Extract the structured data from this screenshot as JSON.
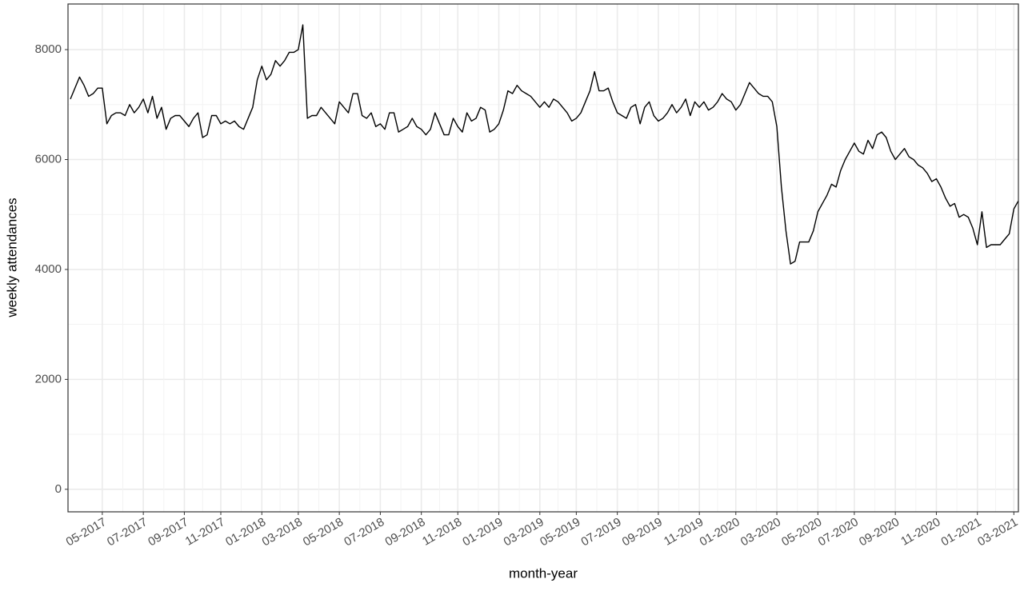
{
  "chart_data": {
    "type": "line",
    "x_label": "month-year",
    "y_label": "weekly attendances",
    "categories": [
      null,
      null,
      null,
      null,
      null,
      null,
      null,
      "05-2017",
      null,
      null,
      null,
      null,
      null,
      null,
      null,
      null,
      "07-2017",
      null,
      null,
      null,
      null,
      null,
      null,
      null,
      null,
      "09-2017",
      null,
      null,
      null,
      null,
      null,
      null,
      null,
      "11-2017",
      null,
      null,
      null,
      null,
      null,
      null,
      null,
      null,
      "01-2018",
      null,
      null,
      null,
      null,
      null,
      null,
      null,
      "03-2018",
      null,
      null,
      null,
      null,
      null,
      null,
      null,
      null,
      "05-2018",
      null,
      null,
      null,
      null,
      null,
      null,
      null,
      null,
      "07-2018",
      null,
      null,
      null,
      null,
      null,
      null,
      null,
      null,
      "09-2018",
      null,
      null,
      null,
      null,
      null,
      null,
      null,
      "11-2018",
      null,
      null,
      null,
      null,
      null,
      null,
      null,
      null,
      "01-2019",
      null,
      null,
      null,
      null,
      null,
      null,
      null,
      null,
      "03-2019",
      null,
      null,
      null,
      null,
      null,
      null,
      null,
      "05-2019",
      null,
      null,
      null,
      null,
      null,
      null,
      null,
      null,
      "07-2019",
      null,
      null,
      null,
      null,
      null,
      null,
      null,
      null,
      "09-2019",
      null,
      null,
      null,
      null,
      null,
      null,
      null,
      null,
      "11-2019",
      null,
      null,
      null,
      null,
      null,
      null,
      null,
      "01-2020",
      null,
      null,
      null,
      null,
      null,
      null,
      null,
      null,
      "03-2020",
      null,
      null,
      null,
      null,
      null,
      null,
      null,
      null,
      "05-2020",
      null,
      null,
      null,
      null,
      null,
      null,
      null,
      "07-2020",
      null,
      null,
      null,
      null,
      null,
      null,
      null,
      null,
      "09-2020",
      null,
      null,
      null,
      null,
      null,
      null,
      null,
      null,
      "11-2020",
      null,
      null,
      null,
      null,
      null,
      null,
      null,
      null,
      "01-2021",
      null,
      null,
      null,
      null,
      null,
      null,
      null,
      "03-2021",
      null
    ],
    "series": [
      {
        "name": "weekly attendances",
        "color": "#000000",
        "values": [
          7100,
          7300,
          7500,
          7350,
          7150,
          7200,
          7300,
          7300,
          6650,
          6800,
          6850,
          6850,
          6800,
          7000,
          6850,
          6950,
          7100,
          6850,
          7150,
          6750,
          6950,
          6550,
          6750,
          6800,
          6800,
          6700,
          6600,
          6750,
          6850,
          6400,
          6450,
          6800,
          6800,
          6650,
          6700,
          6650,
          6700,
          6600,
          6550,
          6750,
          6950,
          7450,
          7700,
          7450,
          7550,
          7800,
          7700,
          7800,
          7950,
          7950,
          8000,
          8450,
          6750,
          6800,
          6800,
          6950,
          6850,
          6750,
          6650,
          7050,
          6950,
          6850,
          7200,
          7200,
          6800,
          6750,
          6850,
          6600,
          6650,
          6550,
          6850,
          6850,
          6500,
          6550,
          6600,
          6750,
          6600,
          6550,
          6450,
          6550,
          6850,
          6650,
          6450,
          6450,
          6750,
          6600,
          6500,
          6850,
          6700,
          6750,
          6950,
          6900,
          6500,
          6550,
          6650,
          6900,
          7250,
          7200,
          7350,
          7250,
          7200,
          7150,
          7050,
          6950,
          7050,
          6950,
          7100,
          7050,
          6950,
          6850,
          6700,
          6750,
          6850,
          7050,
          7250,
          7600,
          7250,
          7250,
          7300,
          7050,
          6850,
          6800,
          6750,
          6950,
          7000,
          6650,
          6950,
          7050,
          6800,
          6700,
          6750,
          6850,
          7000,
          6850,
          6950,
          7100,
          6800,
          7050,
          6950,
          7050,
          6900,
          6950,
          7050,
          7200,
          7100,
          7050,
          6900,
          7000,
          7200,
          7400,
          7300,
          7200,
          7150,
          7150,
          7050,
          6600,
          5500,
          4700,
          4100,
          4150,
          4500,
          4500,
          4500,
          4700,
          5050,
          5200,
          5350,
          5550,
          5500,
          5800,
          6000,
          6150,
          6300,
          6150,
          6100,
          6350,
          6200,
          6450,
          6500,
          6400,
          6150,
          6000,
          6100,
          6200,
          6050,
          6000,
          5900,
          5850,
          5750,
          5600,
          5650,
          5500,
          5300,
          5150,
          5200,
          4950,
          5000,
          4950,
          4750,
          4450,
          5050,
          4400,
          4450,
          4450,
          4450,
          4550,
          4650,
          5100,
          5250
        ]
      }
    ],
    "ylim": [
      -410,
      8830
    ],
    "yticks": [
      0,
      2000,
      4000,
      6000,
      8000
    ],
    "grid": true
  }
}
